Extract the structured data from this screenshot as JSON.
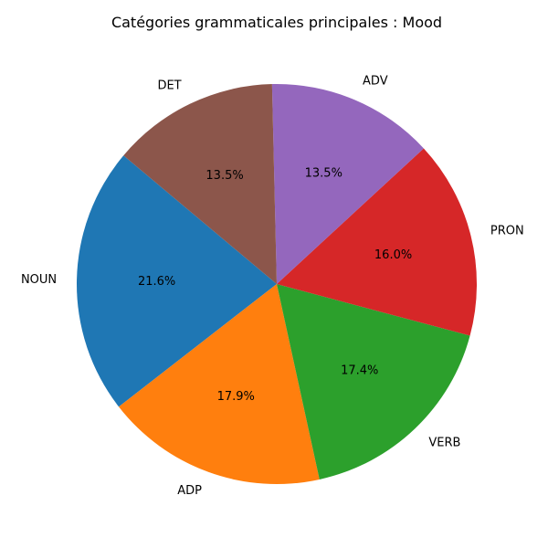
{
  "chart_data": {
    "type": "pie",
    "title": "Catégories grammaticales principales : Mood",
    "categories": [
      "NOUN",
      "ADP",
      "VERB",
      "PRON",
      "ADV",
      "DET"
    ],
    "values": [
      21.6,
      17.9,
      17.4,
      16.0,
      13.5,
      13.5
    ],
    "value_labels": [
      "21.6%",
      "17.9%",
      "17.4%",
      "16.0%",
      "13.5%",
      "13.5%"
    ],
    "colors": [
      "#1f77b4",
      "#ff7f0e",
      "#2ca02c",
      "#d62728",
      "#9467bd",
      "#8c564b"
    ],
    "start_angle_deg": 140,
    "direction": "counterclockwise",
    "legend": "none"
  }
}
